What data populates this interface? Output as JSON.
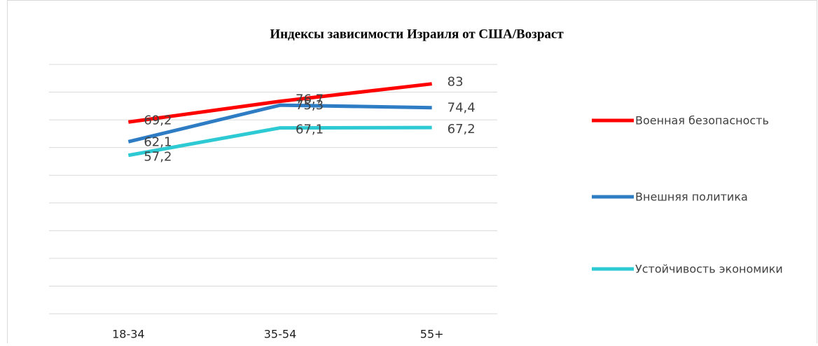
{
  "chart_data": {
    "type": "line",
    "title": "Индексы зависимости Израиля от США/Возраст",
    "categories": [
      "18-34",
      "35-54",
      "55+"
    ],
    "series": [
      {
        "name": "Военная безопасность",
        "color": "#ff0000",
        "values": [
          69.2,
          76.7,
          83
        ],
        "value_labels": [
          "69,2",
          "76,7",
          "83"
        ]
      },
      {
        "name": "Внешняя политика",
        "color": "#2e7dc4",
        "values": [
          62.1,
          75.3,
          74.4
        ],
        "value_labels": [
          "62,1",
          "75,3",
          "74,4"
        ]
      },
      {
        "name": "Устойчивость экономики",
        "color": "#2ecad4",
        "values": [
          57.2,
          67.1,
          67.2
        ],
        "value_labels": [
          "57,2",
          "67,1",
          "67,2"
        ]
      }
    ],
    "ylim": [
      0,
      90
    ],
    "yticks": [
      0,
      10,
      20,
      30,
      40,
      50,
      60,
      70,
      80,
      90
    ],
    "grid": true,
    "legend": "right"
  }
}
